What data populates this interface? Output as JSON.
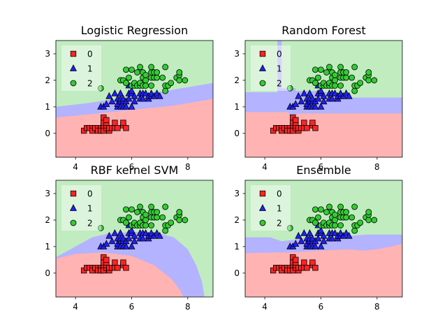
{
  "colors": {
    "region": [
      "#ffb3b3",
      "#b3b3ff",
      "#c0ecc0"
    ],
    "marker": [
      "#ff2424",
      "#2020ff",
      "#33cc33"
    ]
  },
  "chart_data": [
    {
      "type": "scatter",
      "title": "Logistic Regression",
      "xlim": [
        3.3,
        8.9
      ],
      "ylim": [
        -0.9,
        3.5
      ],
      "xticks": [
        4,
        6,
        8
      ],
      "yticks": [
        0,
        1,
        2,
        3
      ],
      "legend": {
        "placement": "upper-left",
        "labels": [
          "0",
          "1",
          "2"
        ]
      },
      "boundaries": [
        {
          "name": "upper",
          "x": [
            3.3,
            4.5,
            6.0,
            7.5,
            8.9
          ],
          "y": [
            1.0,
            1.15,
            1.4,
            1.65,
            1.9
          ]
        },
        {
          "name": "lower",
          "x": [
            3.3,
            4.5,
            6.0,
            7.5,
            8.9
          ],
          "y": [
            0.6,
            0.72,
            0.88,
            1.05,
            1.3
          ]
        }
      ]
    },
    {
      "type": "scatter",
      "title": "Random Forest",
      "xlim": [
        3.3,
        8.9
      ],
      "ylim": [
        -0.9,
        3.5
      ],
      "xticks": [
        4,
        6,
        8
      ],
      "yticks": [
        0,
        1,
        2,
        3
      ],
      "legend": {
        "placement": "upper-left",
        "labels": [
          "0",
          "1",
          "2"
        ]
      },
      "boundaries": [
        {
          "name": "upper",
          "x": [
            3.3,
            4.45,
            4.45,
            4.6,
            4.6,
            5.1,
            5.1,
            6.0,
            6.0,
            6.5,
            6.5,
            7.0,
            7.0,
            8.9
          ],
          "y": [
            1.55,
            1.55,
            3.5,
            3.5,
            1.7,
            1.7,
            1.6,
            1.6,
            1.55,
            1.55,
            1.4,
            1.4,
            1.35,
            1.35
          ]
        },
        {
          "name": "lower",
          "x": [
            3.3,
            4.85,
            4.85,
            5.15,
            5.15,
            8.9
          ],
          "y": [
            0.8,
            0.8,
            0.7,
            0.7,
            0.75,
            0.75
          ]
        }
      ]
    },
    {
      "type": "scatter",
      "title": "RBF kernel SVM",
      "xlim": [
        3.3,
        8.9
      ],
      "ylim": [
        -0.9,
        3.5
      ],
      "xticks": [
        4,
        6,
        8
      ],
      "yticks": [
        0,
        1,
        2,
        3
      ],
      "legend": {
        "placement": "upper-left",
        "labels": [
          "0",
          "1",
          "2"
        ]
      },
      "boundaries": [
        {
          "name": "upper",
          "x": [
            3.3,
            4.0,
            4.6,
            5.2,
            6.0,
            6.8,
            7.5,
            8.0,
            8.3,
            8.5,
            8.6
          ],
          "y": [
            0.6,
            1.0,
            1.35,
            1.5,
            1.55,
            1.55,
            1.35,
            0.9,
            0.3,
            -0.3,
            -0.9
          ]
        },
        {
          "name": "lower",
          "x": [
            3.3,
            4.0,
            5.0,
            6.0,
            6.8,
            7.4,
            7.7,
            7.85
          ],
          "y": [
            0.55,
            0.72,
            0.78,
            0.65,
            0.3,
            -0.2,
            -0.6,
            -0.9
          ]
        }
      ]
    },
    {
      "type": "scatter",
      "title": "Ensemble",
      "xlim": [
        3.3,
        8.9
      ],
      "ylim": [
        -0.9,
        3.5
      ],
      "xticks": [
        4,
        6,
        8
      ],
      "yticks": [
        0,
        1,
        2,
        3
      ],
      "legend": {
        "placement": "upper-left",
        "labels": [
          "0",
          "1",
          "2"
        ]
      },
      "boundaries": [
        {
          "name": "upper",
          "x": [
            3.3,
            4.2,
            4.6,
            5.0,
            5.5,
            6.0,
            6.5,
            7.0,
            7.6,
            8.0,
            8.9
          ],
          "y": [
            1.35,
            1.35,
            1.2,
            1.25,
            1.35,
            1.35,
            1.3,
            1.4,
            1.45,
            1.45,
            1.45
          ]
        },
        {
          "name": "lower",
          "x": [
            3.3,
            4.5,
            5.0,
            5.5,
            6.0,
            7.0,
            7.5,
            8.0,
            8.5,
            8.9
          ],
          "y": [
            0.75,
            0.78,
            0.78,
            0.82,
            0.85,
            0.9,
            0.85,
            0.9,
            1.0,
            1.1
          ]
        }
      ]
    }
  ],
  "points": {
    "0": [
      [
        4.3,
        0.1
      ],
      [
        4.4,
        0.2
      ],
      [
        4.5,
        0.2
      ],
      [
        4.6,
        0.2
      ],
      [
        4.6,
        0.1
      ],
      [
        4.7,
        0.2
      ],
      [
        4.8,
        0.2
      ],
      [
        4.8,
        0.1
      ],
      [
        4.9,
        0.2
      ],
      [
        4.9,
        0.1
      ],
      [
        5.0,
        0.2
      ],
      [
        5.0,
        0.1
      ],
      [
        5.0,
        0.3
      ],
      [
        5.0,
        0.4
      ],
      [
        5.0,
        0.6
      ],
      [
        5.1,
        0.2
      ],
      [
        5.1,
        0.3
      ],
      [
        5.1,
        0.4
      ],
      [
        5.1,
        0.5
      ],
      [
        5.2,
        0.1
      ],
      [
        5.2,
        0.2
      ],
      [
        5.3,
        0.2
      ],
      [
        5.4,
        0.2
      ],
      [
        5.4,
        0.4
      ],
      [
        5.5,
        0.2
      ],
      [
        5.7,
        0.3
      ],
      [
        5.7,
        0.4
      ],
      [
        5.8,
        0.2
      ]
    ],
    "1": [
      [
        4.9,
        1.0
      ],
      [
        5.0,
        1.0
      ],
      [
        5.1,
        1.1
      ],
      [
        5.2,
        1.4
      ],
      [
        5.3,
        1.2
      ],
      [
        5.5,
        1.0
      ],
      [
        5.5,
        1.1
      ],
      [
        5.5,
        1.3
      ],
      [
        5.6,
        1.0
      ],
      [
        5.6,
        1.2
      ],
      [
        5.6,
        1.3
      ],
      [
        5.6,
        1.5
      ],
      [
        5.7,
        1.0
      ],
      [
        5.7,
        1.2
      ],
      [
        5.7,
        1.3
      ],
      [
        5.8,
        1.0
      ],
      [
        5.8,
        1.2
      ],
      [
        5.9,
        1.3
      ],
      [
        5.9,
        1.5
      ],
      [
        5.9,
        1.8
      ],
      [
        6.0,
        1.0
      ],
      [
        6.0,
        1.5
      ],
      [
        6.0,
        1.6
      ],
      [
        6.1,
        1.2
      ],
      [
        6.1,
        1.4
      ],
      [
        6.3,
        1.3
      ],
      [
        6.3,
        1.5
      ],
      [
        6.4,
        1.3
      ],
      [
        6.4,
        1.5
      ],
      [
        6.5,
        1.5
      ],
      [
        6.6,
        1.3
      ],
      [
        6.6,
        1.4
      ],
      [
        6.7,
        1.4
      ],
      [
        6.7,
        1.5
      ],
      [
        6.8,
        1.4
      ],
      [
        6.9,
        1.5
      ],
      [
        7.0,
        1.4
      ],
      [
        5.4,
        1.5
      ]
    ],
    "2": [
      [
        4.9,
        1.7
      ],
      [
        5.6,
        2.0
      ],
      [
        5.7,
        2.0
      ],
      [
        5.8,
        1.9
      ],
      [
        5.8,
        2.4
      ],
      [
        5.9,
        2.1
      ],
      [
        6.0,
        1.8
      ],
      [
        6.1,
        1.8
      ],
      [
        6.1,
        1.9
      ],
      [
        6.2,
        1.8
      ],
      [
        6.2,
        2.3
      ],
      [
        6.3,
        1.8
      ],
      [
        6.3,
        1.9
      ],
      [
        6.3,
        2.5
      ],
      [
        6.4,
        1.8
      ],
      [
        6.4,
        2.1
      ],
      [
        6.4,
        2.3
      ],
      [
        6.5,
        1.8
      ],
      [
        6.5,
        2.0
      ],
      [
        6.5,
        2.2
      ],
      [
        6.7,
        1.8
      ],
      [
        6.7,
        2.1
      ],
      [
        6.7,
        2.3
      ],
      [
        6.7,
        2.5
      ],
      [
        6.8,
        2.1
      ],
      [
        6.8,
        2.3
      ],
      [
        6.9,
        2.1
      ],
      [
        6.9,
        2.3
      ],
      [
        7.1,
        2.1
      ],
      [
        7.2,
        1.6
      ],
      [
        7.2,
        1.8
      ],
      [
        7.2,
        2.5
      ],
      [
        7.3,
        1.8
      ],
      [
        7.4,
        1.9
      ],
      [
        7.6,
        2.1
      ],
      [
        7.7,
        2.0
      ],
      [
        7.7,
        2.2
      ],
      [
        7.7,
        2.3
      ],
      [
        7.9,
        2.0
      ],
      [
        6.0,
        2.4
      ]
    ]
  }
}
